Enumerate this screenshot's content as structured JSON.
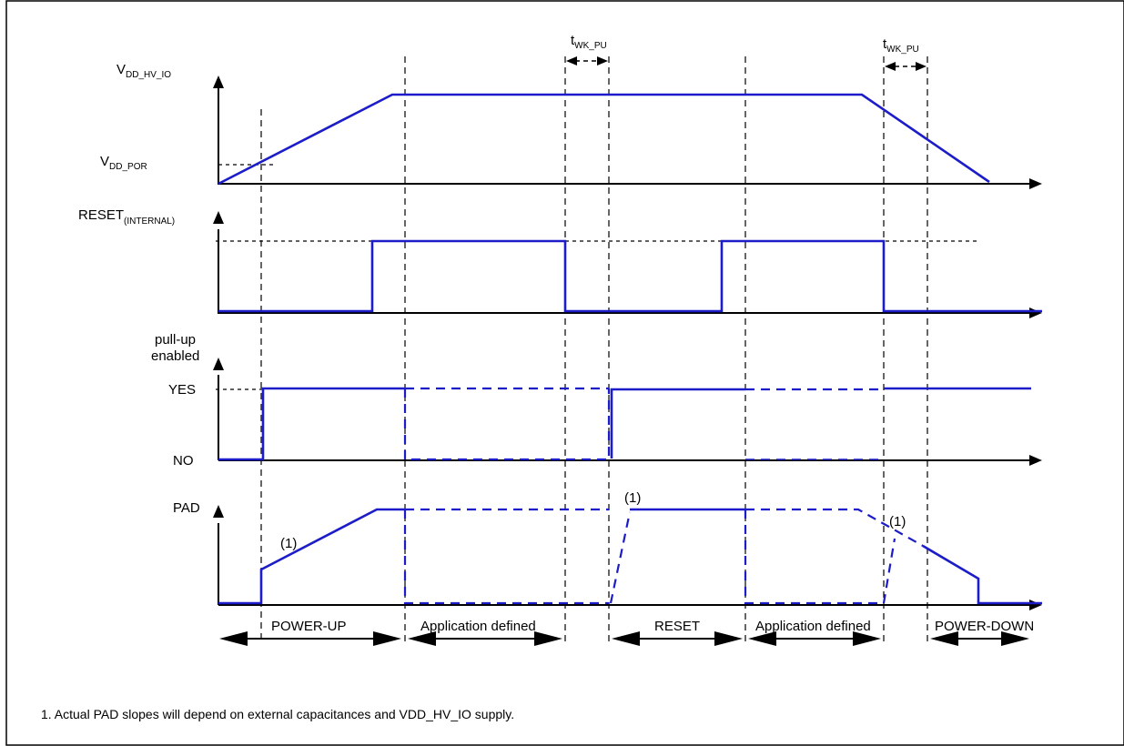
{
  "labels": {
    "vdd_main": "V",
    "vdd_hv_sub": "DD_HV_IO",
    "vdd_por_main": "V",
    "vdd_por_sub": "DD_POR",
    "reset_main": "RESET",
    "reset_sub": "(INTERNAL)",
    "pullup_line1": "pull-up",
    "pullup_line2": "enabled",
    "yes": "YES",
    "no": "NO",
    "pad": "PAD",
    "twk_main_1": "t",
    "twk_sub_1": "WK_PU",
    "twk_main_2": "t",
    "twk_sub_2": "WK_PU",
    "note_a": "(1)",
    "note_b": "(1)",
    "note_c": "(1)"
  },
  "phases": [
    {
      "label": "POWER-UP"
    },
    {
      "label": "Application defined"
    },
    {
      "label": "RESET"
    },
    {
      "label": "Application defined"
    },
    {
      "label": "POWER-DOWN"
    }
  ],
  "footnote": "1. Actual PAD slopes will depend on external capacitances and VDD_HV_IO supply.",
  "colors": {
    "signal": "#1c1cc8",
    "frame": "#000000"
  }
}
